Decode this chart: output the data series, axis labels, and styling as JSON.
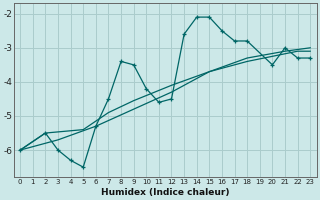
{
  "xlabel": "Humidex (Indice chaleur)",
  "background_color": "#cce8e8",
  "grid_color": "#aacccc",
  "line_color": "#006666",
  "xlim": [
    -0.5,
    23.5
  ],
  "ylim": [
    -6.8,
    -1.7
  ],
  "yticks": [
    -6,
    -5,
    -4,
    -3,
    -2
  ],
  "xticks": [
    0,
    1,
    2,
    3,
    4,
    5,
    6,
    7,
    8,
    9,
    10,
    11,
    12,
    13,
    14,
    15,
    16,
    17,
    18,
    19,
    20,
    21,
    22,
    23
  ],
  "line1_x": [
    0,
    2,
    3,
    4,
    5,
    6,
    7,
    8,
    9,
    10,
    11,
    12,
    13,
    14,
    15,
    16,
    17,
    18,
    20,
    21,
    22,
    23
  ],
  "line1_y": [
    -6.0,
    -5.5,
    -6.0,
    -6.3,
    -6.5,
    -5.3,
    -4.5,
    -3.4,
    -3.5,
    -4.2,
    -4.6,
    -4.5,
    -2.6,
    -2.1,
    -2.1,
    -2.5,
    -2.8,
    -2.8,
    -3.5,
    -3.0,
    -3.3,
    -3.3
  ],
  "line2_x": [
    0,
    2,
    5,
    7,
    9,
    12,
    15,
    18,
    20,
    22,
    23
  ],
  "line2_y": [
    -6.0,
    -5.5,
    -5.4,
    -4.9,
    -4.55,
    -4.1,
    -3.7,
    -3.4,
    -3.25,
    -3.1,
    -3.1
  ],
  "line3_x": [
    0,
    3,
    6,
    9,
    12,
    15,
    18,
    21,
    23
  ],
  "line3_y": [
    -6.0,
    -5.7,
    -5.3,
    -4.8,
    -4.3,
    -3.7,
    -3.3,
    -3.1,
    -3.0
  ]
}
